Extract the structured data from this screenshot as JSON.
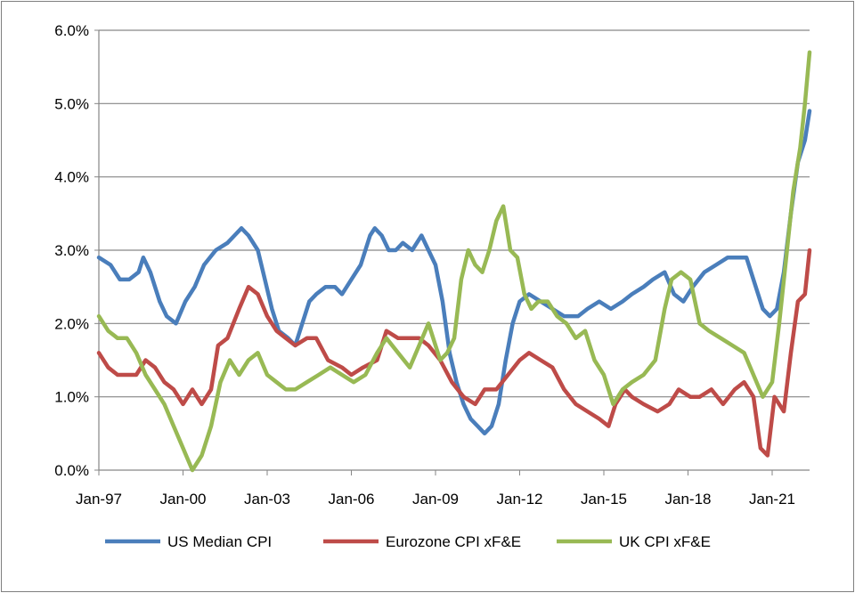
{
  "chart_data": {
    "type": "line",
    "title": "",
    "xlabel": "",
    "ylabel": "",
    "x_range": [
      "1997-01",
      "2022-05"
    ],
    "x_ticks": [
      {
        "date": "1997-01",
        "label": "Jan-97"
      },
      {
        "date": "2000-01",
        "label": "Jan-00"
      },
      {
        "date": "2003-01",
        "label": "Jan-03"
      },
      {
        "date": "2006-01",
        "label": "Jan-06"
      },
      {
        "date": "2009-01",
        "label": "Jan-09"
      },
      {
        "date": "2012-01",
        "label": "Jan-12"
      },
      {
        "date": "2015-01",
        "label": "Jan-15"
      },
      {
        "date": "2018-01",
        "label": "Jan-18"
      },
      {
        "date": "2021-01",
        "label": "Jan-21"
      }
    ],
    "ylim": [
      0,
      6
    ],
    "y_ticks": [
      {
        "value": 0,
        "label": "0.0%"
      },
      {
        "value": 1,
        "label": "1.0%"
      },
      {
        "value": 2,
        "label": "2.0%"
      },
      {
        "value": 3,
        "label": "3.0%"
      },
      {
        "value": 4,
        "label": "4.0%"
      },
      {
        "value": 5,
        "label": "5.0%"
      },
      {
        "value": 6,
        "label": "6.0%"
      }
    ],
    "grid": "horizontal",
    "legend_position": "bottom",
    "series": [
      {
        "name": "US Median CPI",
        "color": "#4a7ebb",
        "points": [
          [
            "1997-01",
            2.9
          ],
          [
            "1997-06",
            2.8
          ],
          [
            "1997-10",
            2.6
          ],
          [
            "1998-02",
            2.6
          ],
          [
            "1998-06",
            2.7
          ],
          [
            "1998-08",
            2.9
          ],
          [
            "1998-11",
            2.7
          ],
          [
            "1999-03",
            2.3
          ],
          [
            "1999-06",
            2.1
          ],
          [
            "1999-10",
            2.0
          ],
          [
            "2000-02",
            2.3
          ],
          [
            "2000-06",
            2.5
          ],
          [
            "2000-10",
            2.8
          ],
          [
            "2001-03",
            3.0
          ],
          [
            "2001-08",
            3.1
          ],
          [
            "2001-11",
            3.2
          ],
          [
            "2002-02",
            3.3
          ],
          [
            "2002-05",
            3.2
          ],
          [
            "2002-09",
            3.0
          ],
          [
            "2002-12",
            2.6
          ],
          [
            "2003-03",
            2.2
          ],
          [
            "2003-06",
            1.9
          ],
          [
            "2003-10",
            1.8
          ],
          [
            "2004-01",
            1.7
          ],
          [
            "2004-04",
            2.0
          ],
          [
            "2004-07",
            2.3
          ],
          [
            "2004-10",
            2.4
          ],
          [
            "2005-02",
            2.5
          ],
          [
            "2005-06",
            2.5
          ],
          [
            "2005-09",
            2.4
          ],
          [
            "2006-01",
            2.6
          ],
          [
            "2006-05",
            2.8
          ],
          [
            "2006-09",
            3.2
          ],
          [
            "2006-11",
            3.3
          ],
          [
            "2007-02",
            3.2
          ],
          [
            "2007-05",
            3.0
          ],
          [
            "2007-08",
            3.0
          ],
          [
            "2007-11",
            3.1
          ],
          [
            "2008-03",
            3.0
          ],
          [
            "2008-05",
            3.1
          ],
          [
            "2008-07",
            3.2
          ],
          [
            "2008-10",
            3.0
          ],
          [
            "2009-01",
            2.8
          ],
          [
            "2009-04",
            2.3
          ],
          [
            "2009-07",
            1.6
          ],
          [
            "2009-10",
            1.2
          ],
          [
            "2010-01",
            0.9
          ],
          [
            "2010-04",
            0.7
          ],
          [
            "2010-07",
            0.6
          ],
          [
            "2010-10",
            0.5
          ],
          [
            "2011-01",
            0.6
          ],
          [
            "2011-04",
            0.9
          ],
          [
            "2011-07",
            1.5
          ],
          [
            "2011-10",
            2.0
          ],
          [
            "2012-01",
            2.3
          ],
          [
            "2012-05",
            2.4
          ],
          [
            "2012-10",
            2.3
          ],
          [
            "2013-03",
            2.2
          ],
          [
            "2013-08",
            2.1
          ],
          [
            "2014-02",
            2.1
          ],
          [
            "2014-06",
            2.2
          ],
          [
            "2014-11",
            2.3
          ],
          [
            "2015-04",
            2.2
          ],
          [
            "2015-09",
            2.3
          ],
          [
            "2016-01",
            2.4
          ],
          [
            "2016-06",
            2.5
          ],
          [
            "2016-10",
            2.6
          ],
          [
            "2017-03",
            2.7
          ],
          [
            "2017-07",
            2.4
          ],
          [
            "2017-11",
            2.3
          ],
          [
            "2018-03",
            2.5
          ],
          [
            "2018-08",
            2.7
          ],
          [
            "2019-01",
            2.8
          ],
          [
            "2019-06",
            2.9
          ],
          [
            "2019-10",
            2.9
          ],
          [
            "2020-02",
            2.9
          ],
          [
            "2020-06",
            2.5
          ],
          [
            "2020-09",
            2.2
          ],
          [
            "2020-12",
            2.1
          ],
          [
            "2021-03",
            2.2
          ],
          [
            "2021-06",
            2.7
          ],
          [
            "2021-09",
            3.5
          ],
          [
            "2021-12",
            4.2
          ],
          [
            "2022-03",
            4.5
          ],
          [
            "2022-05",
            4.9
          ]
        ]
      },
      {
        "name": "Eurozone CPI xF&E",
        "color": "#be4b48",
        "points": [
          [
            "1997-01",
            1.6
          ],
          [
            "1997-05",
            1.4
          ],
          [
            "1997-09",
            1.3
          ],
          [
            "1998-01",
            1.3
          ],
          [
            "1998-05",
            1.3
          ],
          [
            "1998-09",
            1.5
          ],
          [
            "1999-01",
            1.4
          ],
          [
            "1999-05",
            1.2
          ],
          [
            "1999-09",
            1.1
          ],
          [
            "2000-01",
            0.9
          ],
          [
            "2000-05",
            1.1
          ],
          [
            "2000-09",
            0.9
          ],
          [
            "2001-01",
            1.1
          ],
          [
            "2001-04",
            1.7
          ],
          [
            "2001-08",
            1.8
          ],
          [
            "2002-01",
            2.2
          ],
          [
            "2002-05",
            2.5
          ],
          [
            "2002-09",
            2.4
          ],
          [
            "2003-01",
            2.1
          ],
          [
            "2003-05",
            1.9
          ],
          [
            "2003-09",
            1.8
          ],
          [
            "2004-01",
            1.7
          ],
          [
            "2004-06",
            1.8
          ],
          [
            "2004-10",
            1.8
          ],
          [
            "2005-03",
            1.5
          ],
          [
            "2005-09",
            1.4
          ],
          [
            "2006-01",
            1.3
          ],
          [
            "2006-06",
            1.4
          ],
          [
            "2006-12",
            1.5
          ],
          [
            "2007-04",
            1.9
          ],
          [
            "2007-09",
            1.8
          ],
          [
            "2008-02",
            1.8
          ],
          [
            "2008-06",
            1.8
          ],
          [
            "2008-10",
            1.7
          ],
          [
            "2009-03",
            1.5
          ],
          [
            "2009-08",
            1.2
          ],
          [
            "2010-01",
            1.0
          ],
          [
            "2010-06",
            0.9
          ],
          [
            "2010-10",
            1.1
          ],
          [
            "2011-03",
            1.1
          ],
          [
            "2011-08",
            1.3
          ],
          [
            "2012-01",
            1.5
          ],
          [
            "2012-05",
            1.6
          ],
          [
            "2012-10",
            1.5
          ],
          [
            "2013-03",
            1.4
          ],
          [
            "2013-08",
            1.1
          ],
          [
            "2014-01",
            0.9
          ],
          [
            "2014-06",
            0.8
          ],
          [
            "2014-11",
            0.7
          ],
          [
            "2015-03",
            0.6
          ],
          [
            "2015-06",
            0.9
          ],
          [
            "2015-10",
            1.1
          ],
          [
            "2016-01",
            1.0
          ],
          [
            "2016-06",
            0.9
          ],
          [
            "2016-12",
            0.8
          ],
          [
            "2017-05",
            0.9
          ],
          [
            "2017-09",
            1.1
          ],
          [
            "2018-02",
            1.0
          ],
          [
            "2018-06",
            1.0
          ],
          [
            "2018-11",
            1.1
          ],
          [
            "2019-04",
            0.9
          ],
          [
            "2019-09",
            1.1
          ],
          [
            "2020-01",
            1.2
          ],
          [
            "2020-05",
            1.0
          ],
          [
            "2020-08",
            0.3
          ],
          [
            "2020-11",
            0.2
          ],
          [
            "2021-02",
            1.0
          ],
          [
            "2021-06",
            0.8
          ],
          [
            "2021-09",
            1.6
          ],
          [
            "2021-12",
            2.3
          ],
          [
            "2022-03",
            2.4
          ],
          [
            "2022-05",
            3.0
          ]
        ]
      },
      {
        "name": "UK CPI xF&E",
        "color": "#98b954",
        "points": [
          [
            "1997-01",
            2.1
          ],
          [
            "1997-05",
            1.9
          ],
          [
            "1997-09",
            1.8
          ],
          [
            "1998-01",
            1.8
          ],
          [
            "1998-05",
            1.6
          ],
          [
            "1998-09",
            1.3
          ],
          [
            "1999-01",
            1.1
          ],
          [
            "1999-05",
            0.9
          ],
          [
            "1999-09",
            0.6
          ],
          [
            "2000-01",
            0.3
          ],
          [
            "2000-05",
            0.0
          ],
          [
            "2000-09",
            0.2
          ],
          [
            "2001-01",
            0.6
          ],
          [
            "2001-05",
            1.2
          ],
          [
            "2001-09",
            1.5
          ],
          [
            "2002-01",
            1.3
          ],
          [
            "2002-05",
            1.5
          ],
          [
            "2002-09",
            1.6
          ],
          [
            "2003-01",
            1.3
          ],
          [
            "2003-05",
            1.2
          ],
          [
            "2003-09",
            1.1
          ],
          [
            "2004-01",
            1.1
          ],
          [
            "2004-06",
            1.2
          ],
          [
            "2004-11",
            1.3
          ],
          [
            "2005-04",
            1.4
          ],
          [
            "2005-09",
            1.3
          ],
          [
            "2006-02",
            1.2
          ],
          [
            "2006-07",
            1.3
          ],
          [
            "2006-12",
            1.6
          ],
          [
            "2007-04",
            1.8
          ],
          [
            "2007-09",
            1.6
          ],
          [
            "2008-02",
            1.4
          ],
          [
            "2008-06",
            1.7
          ],
          [
            "2008-10",
            2.0
          ],
          [
            "2009-03",
            1.5
          ],
          [
            "2009-06",
            1.6
          ],
          [
            "2009-09",
            1.8
          ],
          [
            "2009-12",
            2.6
          ],
          [
            "2010-03",
            3.0
          ],
          [
            "2010-06",
            2.8
          ],
          [
            "2010-09",
            2.7
          ],
          [
            "2010-12",
            3.0
          ],
          [
            "2011-03",
            3.4
          ],
          [
            "2011-06",
            3.6
          ],
          [
            "2011-09",
            3.0
          ],
          [
            "2011-12",
            2.9
          ],
          [
            "2012-03",
            2.4
          ],
          [
            "2012-06",
            2.2
          ],
          [
            "2012-09",
            2.3
          ],
          [
            "2013-01",
            2.3
          ],
          [
            "2013-05",
            2.1
          ],
          [
            "2013-09",
            2.0
          ],
          [
            "2014-01",
            1.8
          ],
          [
            "2014-05",
            1.9
          ],
          [
            "2014-09",
            1.5
          ],
          [
            "2015-01",
            1.3
          ],
          [
            "2015-05",
            0.9
          ],
          [
            "2015-09",
            1.1
          ],
          [
            "2016-01",
            1.2
          ],
          [
            "2016-06",
            1.3
          ],
          [
            "2016-11",
            1.5
          ],
          [
            "2017-03",
            2.2
          ],
          [
            "2017-06",
            2.6
          ],
          [
            "2017-10",
            2.7
          ],
          [
            "2018-02",
            2.6
          ],
          [
            "2018-06",
            2.0
          ],
          [
            "2018-10",
            1.9
          ],
          [
            "2019-03",
            1.8
          ],
          [
            "2019-08",
            1.7
          ],
          [
            "2020-01",
            1.6
          ],
          [
            "2020-05",
            1.3
          ],
          [
            "2020-09",
            1.0
          ],
          [
            "2021-01",
            1.2
          ],
          [
            "2021-04",
            2.0
          ],
          [
            "2021-07",
            2.9
          ],
          [
            "2021-10",
            3.8
          ],
          [
            "2022-01",
            4.4
          ],
          [
            "2022-03",
            5.0
          ],
          [
            "2022-05",
            5.7
          ]
        ]
      }
    ]
  }
}
